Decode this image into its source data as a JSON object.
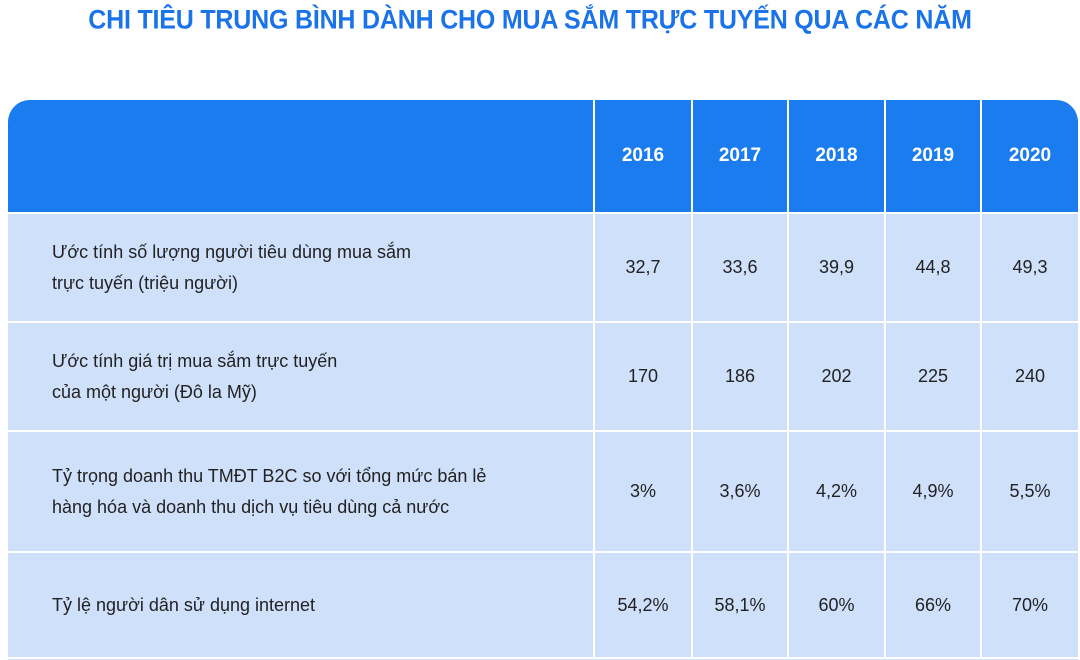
{
  "title": "CHI TIÊU TRUNG BÌNH DÀNH CHO MUA SẮM TRỰC TUYẾN QUA CÁC NĂM",
  "chart_data": {
    "type": "table",
    "title": "CHI TIÊU TRUNG BÌNH DÀNH CHO MUA SẮM TRỰC TUYẾN QUA CÁC NĂM",
    "columns": [
      "",
      "2016",
      "2017",
      "2018",
      "2019",
      "2020"
    ],
    "rows": [
      {
        "label_lines": [
          "Ước tính số lượng người tiêu dùng mua sắm",
          "trực tuyến (triệu người)"
        ],
        "values": [
          "32,7",
          "33,6",
          "39,9",
          "44,8",
          "49,3"
        ]
      },
      {
        "label_lines": [
          "Ước tính giá trị mua sắm trực tuyến",
          "của một người (Đô la Mỹ)"
        ],
        "values": [
          "170",
          "186",
          "202",
          "225",
          "240"
        ]
      },
      {
        "label_lines": [
          "Tỷ trọng doanh thu TMĐT B2C so với tổng mức bán lẻ",
          "hàng hóa và doanh thu dịch vụ tiêu dùng cả nước"
        ],
        "values": [
          "3%",
          "3,6%",
          "4,2%",
          "4,9%",
          "5,5%"
        ]
      },
      {
        "label_lines": [
          "Tỷ lệ người dân sử dụng internet"
        ],
        "values": [
          "54,2%",
          "58,1%",
          "60%",
          "66%",
          "70%"
        ]
      }
    ]
  },
  "colors": {
    "title": "#1a73e8",
    "header_bg": "#1b7cf0",
    "body_bg": "#cfe0fb",
    "grid": "#ffffff"
  }
}
